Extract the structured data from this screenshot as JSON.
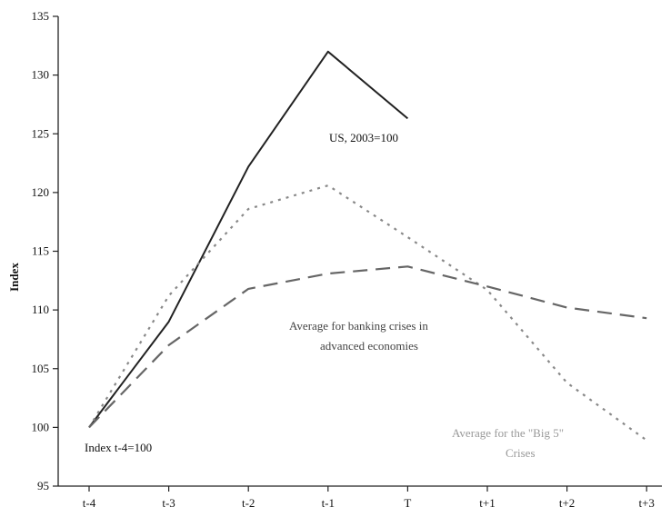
{
  "chart_data": {
    "type": "line",
    "title": "",
    "xlabel": "",
    "ylabel": "Index",
    "categories": [
      "t-4",
      "t-3",
      "t-2",
      "t-1",
      "T",
      "t+1",
      "t+2",
      "t+3"
    ],
    "ylim": [
      95,
      135
    ],
    "yticks": [
      95,
      100,
      105,
      110,
      115,
      120,
      125,
      130,
      135
    ],
    "grid": false,
    "series": [
      {
        "name": "US, 2003=100",
        "style": "solid",
        "color": "#222222",
        "values": [
          100,
          109,
          122.2,
          132,
          126.3,
          null,
          null,
          null
        ]
      },
      {
        "name": "Average for the \"Big 5\" Crises",
        "style": "dotted",
        "color": "#888888",
        "values": [
          100,
          111.2,
          118.6,
          120.6,
          116.2,
          111.7,
          103.8,
          98.9
        ]
      },
      {
        "name": "Average for banking crises in advanced economies",
        "style": "dashed",
        "color": "#666666",
        "values": [
          100,
          107,
          111.8,
          113.1,
          113.7,
          112,
          110.2,
          109.3
        ]
      }
    ],
    "annotations": {
      "us": "US, 2003=100",
      "advanced_line1": "Average for banking crises in",
      "advanced_line2": "advanced economies",
      "big5_line1": "Average for the \"Big 5\"",
      "big5_line2": "Crises",
      "index_base": "Index t-4=100"
    },
    "colors": {
      "axis": "#222222",
      "big5_label": "#999999",
      "advanced_label": "#444444"
    }
  }
}
